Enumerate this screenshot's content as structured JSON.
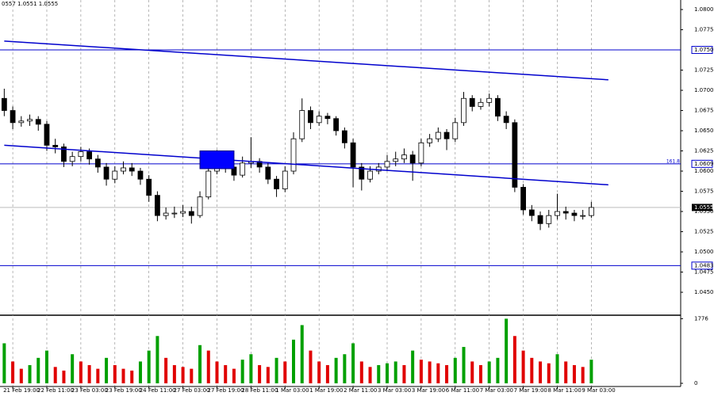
{
  "chart_data": {
    "type": "candlestick",
    "title": "0557 1.0551 1.0555",
    "categories": [
      null,
      "21 Feb 19:00",
      null,
      null,
      null,
      "22 Feb 11:00",
      null,
      null,
      null,
      "23 Feb 03:00",
      null,
      null,
      null,
      "23 Feb 19:00",
      null,
      null,
      null,
      "24 Feb 11:00",
      null,
      null,
      null,
      "27 Feb 03:00",
      null,
      null,
      null,
      "27 Feb 19:00",
      null,
      null,
      null,
      "28 Feb 11:00",
      null,
      null,
      null,
      "1 Mar 03:00",
      null,
      null,
      null,
      "1 Mar 19:00",
      null,
      null,
      null,
      "2 Mar 11:00",
      null,
      null,
      null,
      "3 Mar 03:00",
      null,
      null,
      null,
      "3 Mar 19:00",
      null,
      null,
      null,
      "6 Mar 11:00",
      null,
      null,
      null,
      "7 Mar 03:00",
      null,
      null,
      null,
      "7 Mar 19:00",
      null,
      null,
      null,
      "8 Mar 11:00",
      null,
      null,
      null,
      "9 Mar 03:00"
    ],
    "ohlc": [
      [
        1.069,
        1.0702,
        1.0668,
        1.0675
      ],
      [
        1.0675,
        1.068,
        1.0652,
        1.066
      ],
      [
        1.066,
        1.0668,
        1.0655,
        1.0662
      ],
      [
        1.0662,
        1.067,
        1.0656,
        1.0664
      ],
      [
        1.0664,
        1.0668,
        1.065,
        1.0658
      ],
      [
        1.0658,
        1.0662,
        1.0625,
        1.0632
      ],
      [
        1.0632,
        1.064,
        1.0622,
        1.063
      ],
      [
        1.063,
        1.0634,
        1.0605,
        1.0612
      ],
      [
        1.0612,
        1.0624,
        1.0606,
        1.0618
      ],
      [
        1.0618,
        1.063,
        1.0612,
        1.0624
      ],
      [
        1.0624,
        1.0628,
        1.0608,
        1.0615
      ],
      [
        1.0615,
        1.062,
        1.0598,
        1.0605
      ],
      [
        1.0605,
        1.061,
        1.0582,
        1.059
      ],
      [
        1.059,
        1.0606,
        1.0585,
        1.06
      ],
      [
        1.06,
        1.0612,
        1.0596,
        1.0604
      ],
      [
        1.0604,
        1.061,
        1.0594,
        1.06
      ],
      [
        1.06,
        1.0604,
        1.0583,
        1.059
      ],
      [
        1.059,
        1.0595,
        1.0562,
        1.057
      ],
      [
        1.057,
        1.0575,
        1.0538,
        1.0545
      ],
      [
        1.0545,
        1.0555,
        1.054,
        1.0548
      ],
      [
        1.0548,
        1.0556,
        1.0542,
        1.0548
      ],
      [
        1.0548,
        1.0558,
        1.0543,
        1.055
      ],
      [
        1.055,
        1.0556,
        1.0535,
        1.0545
      ],
      [
        1.0545,
        1.0575,
        1.0542,
        1.0568
      ],
      [
        1.0568,
        1.0608,
        1.0565,
        1.06
      ],
      [
        1.06,
        1.0626,
        1.0596,
        1.0618
      ],
      [
        1.0618,
        1.0622,
        1.0598,
        1.0605
      ],
      [
        1.0605,
        1.061,
        1.0588,
        1.0595
      ],
      [
        1.0595,
        1.0618,
        1.0592,
        1.061
      ],
      [
        1.061,
        1.0642,
        1.0604,
        1.0612
      ],
      [
        1.0612,
        1.0616,
        1.0598,
        1.0605
      ],
      [
        1.0605,
        1.061,
        1.0584,
        1.059
      ],
      [
        1.059,
        1.0594,
        1.0568,
        1.0578
      ],
      [
        1.0578,
        1.0606,
        1.0574,
        1.06
      ],
      [
        1.06,
        1.0648,
        1.0596,
        1.064
      ],
      [
        1.064,
        1.069,
        1.0636,
        1.0675
      ],
      [
        1.0675,
        1.068,
        1.0652,
        1.066
      ],
      [
        1.066,
        1.0674,
        1.0656,
        1.0668
      ],
      [
        1.0668,
        1.0672,
        1.0658,
        1.0665
      ],
      [
        1.0665,
        1.0668,
        1.0644,
        1.065
      ],
      [
        1.065,
        1.0654,
        1.0628,
        1.0635
      ],
      [
        1.0635,
        1.064,
        1.058,
        1.0605
      ],
      [
        1.0605,
        1.061,
        1.0576,
        1.059
      ],
      [
        1.059,
        1.0606,
        1.0586,
        1.06
      ],
      [
        1.06,
        1.061,
        1.0596,
        1.0605
      ],
      [
        1.0605,
        1.062,
        1.06,
        1.0612
      ],
      [
        1.0612,
        1.0624,
        1.0606,
        1.0615
      ],
      [
        1.0615,
        1.0628,
        1.061,
        1.062
      ],
      [
        1.062,
        1.0625,
        1.0588,
        1.061
      ],
      [
        1.061,
        1.064,
        1.0606,
        1.0635
      ],
      [
        1.0635,
        1.0646,
        1.063,
        1.064
      ],
      [
        1.064,
        1.0654,
        1.0636,
        1.0648
      ],
      [
        1.0648,
        1.0652,
        1.0626,
        1.064
      ],
      [
        1.064,
        1.0666,
        1.0636,
        1.066
      ],
      [
        1.066,
        1.0698,
        1.0656,
        1.069
      ],
      [
        1.069,
        1.0694,
        1.0674,
        1.068
      ],
      [
        1.068,
        1.069,
        1.0676,
        1.0685
      ],
      [
        1.0685,
        1.0696,
        1.068,
        1.069
      ],
      [
        1.069,
        1.0694,
        1.0662,
        1.0668
      ],
      [
        1.0668,
        1.0674,
        1.0652,
        1.066
      ],
      [
        1.066,
        1.0664,
        1.0574,
        1.058
      ],
      [
        1.058,
        1.0584,
        1.0546,
        1.0552
      ],
      [
        1.0552,
        1.0558,
        1.0538,
        1.0545
      ],
      [
        1.0545,
        1.055,
        1.0527,
        1.0535
      ],
      [
        1.0535,
        1.0552,
        1.053,
        1.0545
      ],
      [
        1.0545,
        1.0572,
        1.054,
        1.055
      ],
      [
        1.055,
        1.0556,
        1.054,
        1.0548
      ],
      [
        1.0548,
        1.0552,
        1.0538,
        1.0545
      ],
      [
        1.0545,
        1.0552,
        1.054,
        1.0545
      ],
      [
        1.0545,
        1.0562,
        1.0542,
        1.0555
      ]
    ],
    "volumes": [
      1100,
      600,
      400,
      500,
      700,
      900,
      450,
      350,
      800,
      600,
      500,
      400,
      700,
      500,
      400,
      350,
      600,
      900,
      1300,
      700,
      500,
      450,
      400,
      1050,
      900,
      600,
      500,
      400,
      650,
      800,
      500,
      450,
      700,
      600,
      1200,
      1600,
      900,
      600,
      500,
      700,
      800,
      1100,
      600,
      450,
      500,
      550,
      600,
      500,
      900,
      650,
      600,
      550,
      500,
      700,
      1000,
      600,
      500,
      600,
      700,
      1776,
      1300,
      900,
      700,
      600,
      550,
      800,
      600,
      500,
      450,
      650
    ],
    "ylim": [
      1.04216,
      1.08118
    ],
    "yticks": [
      {
        "value": 1.08,
        "label": "1.0800"
      },
      {
        "value": 1.0775,
        "label": "1.0775"
      },
      {
        "value": 1.0725,
        "label": "1.0725"
      },
      {
        "value": 1.07,
        "label": "1.0700"
      },
      {
        "value": 1.0675,
        "label": "1.0675"
      },
      {
        "value": 1.065,
        "label": "1.0650"
      },
      {
        "value": 1.0625,
        "label": "1.0625"
      },
      {
        "value": 1.06,
        "label": "1.0600"
      },
      {
        "value": 1.0575,
        "label": "1.0575"
      },
      {
        "value": 1.055,
        "label": "1.0550"
      },
      {
        "value": 1.0525,
        "label": "1.0525"
      },
      {
        "value": 1.05,
        "label": "1.0500"
      },
      {
        "value": 1.0475,
        "label": "1.0475"
      },
      {
        "value": 1.045,
        "label": "1.0450"
      }
    ],
    "vlim": [
      0,
      1850
    ],
    "vticks": [
      1776,
      0
    ],
    "levels": [
      {
        "value": 1.075,
        "label": "1.0750",
        "color": "#0000cd"
      },
      {
        "value": 1.0609,
        "label": "1.0609",
        "color": "#0000cd"
      },
      {
        "value": 1.0483,
        "label": "1.0483",
        "color": "#0000cd"
      }
    ],
    "current": {
      "value": 1.0555,
      "label": "1.0555",
      "color": "#b0b0b0"
    },
    "fib_label": "161.8",
    "trendlines": [
      {
        "from": [
          0,
          1.0761
        ],
        "to": [
          71,
          1.0713
        ],
        "color": "#0000cd"
      },
      {
        "from": [
          0,
          1.0632
        ],
        "to": [
          71,
          1.0583
        ],
        "color": "#0000cd"
      }
    ],
    "zone": {
      "from": [
        23,
        1.0625
      ],
      "to": [
        27,
        1.0603
      ],
      "color": "#0000ff"
    },
    "up_color": "#ffffff",
    "down_color": "#000000",
    "volume_up_color": "#00a000",
    "volume_down_color": "#e00000"
  }
}
